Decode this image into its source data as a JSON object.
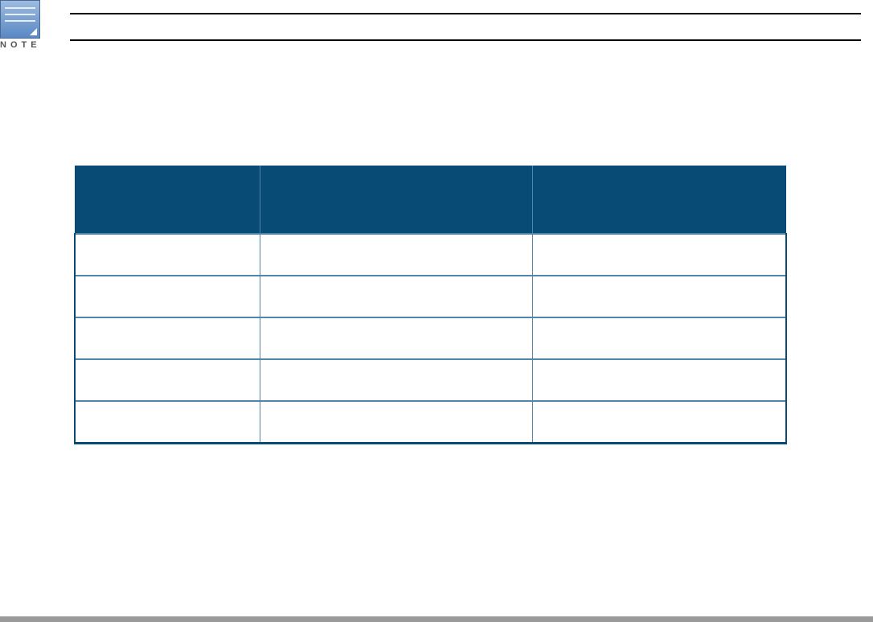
{
  "note": {
    "label": "NOTE",
    "icon": "note-icon"
  },
  "table": {
    "headers": [
      "",
      "",
      ""
    ],
    "rows": [
      [
        "",
        "",
        ""
      ],
      [
        "",
        "",
        ""
      ],
      [
        "",
        "",
        ""
      ],
      [
        "",
        "",
        ""
      ],
      [
        "",
        "",
        ""
      ]
    ]
  },
  "colors": {
    "header_bg": "#084b74",
    "row_border": "#4f86aa",
    "footer_bar": "#9a9a9a"
  }
}
